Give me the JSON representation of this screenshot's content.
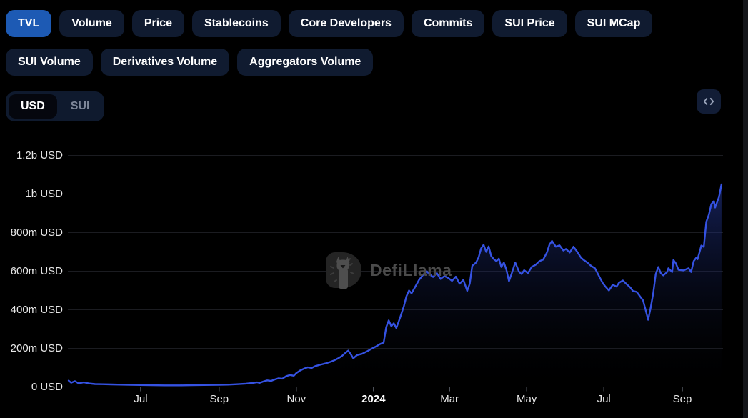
{
  "tabs": {
    "row1": [
      {
        "label": "TVL",
        "active": true
      },
      {
        "label": "Volume",
        "active": false
      },
      {
        "label": "Price",
        "active": false
      },
      {
        "label": "Stablecoins",
        "active": false
      },
      {
        "label": "Core Developers",
        "active": false
      },
      {
        "label": "Commits",
        "active": false
      },
      {
        "label": "SUI Price",
        "active": false
      },
      {
        "label": "SUI MCap",
        "active": false
      }
    ],
    "row2": [
      {
        "label": "SUI Volume",
        "active": false
      },
      {
        "label": "Derivatives Volume",
        "active": false
      },
      {
        "label": "Aggregators Volume",
        "active": false
      }
    ]
  },
  "controls": {
    "currency_toggle": {
      "options": [
        "USD",
        "SUI"
      ],
      "selected": "USD"
    },
    "embed_button": {
      "icon": "code-embed-icon"
    }
  },
  "watermark": {
    "text": "DefiLlama"
  },
  "colors": {
    "background": "#000000",
    "pill_bg": "#101b30",
    "active_pill_blue": "#1d5ab4",
    "line_blue": "#3552e2",
    "area_fill_top": "#2a41b0",
    "grid": "#1b1c21",
    "axis": "#787f8c",
    "label_text": "#e8e8e8",
    "watermark_gray": "#4b4b4b"
  },
  "chart_data": {
    "type": "area",
    "unit": "USD",
    "value_scale": "millions of USD",
    "grid": true,
    "legend": false,
    "y_axis": {
      "range_millions": [
        0,
        1200
      ],
      "ticks": [
        {
          "label": "1.2b USD",
          "value": 1200
        },
        {
          "label": "1b USD",
          "value": 1000
        },
        {
          "label": "800m USD",
          "value": 800
        },
        {
          "label": "600m USD",
          "value": 600
        },
        {
          "label": "400m USD",
          "value": 400
        },
        {
          "label": "200m USD",
          "value": 200
        },
        {
          "label": "0 USD",
          "value": 0
        }
      ]
    },
    "x_axis": {
      "range_dates": [
        "2023-05-05",
        "2024-10-02"
      ],
      "ticks": [
        {
          "label": "Jul",
          "date": "2023-07-01",
          "bold": false
        },
        {
          "label": "Sep",
          "date": "2023-09-01",
          "bold": false
        },
        {
          "label": "Nov",
          "date": "2023-11-01",
          "bold": false
        },
        {
          "label": "2024",
          "date": "2024-01-01",
          "bold": true
        },
        {
          "label": "Mar",
          "date": "2024-03-01",
          "bold": false
        },
        {
          "label": "May",
          "date": "2024-05-01",
          "bold": false
        },
        {
          "label": "Jul",
          "date": "2024-07-01",
          "bold": false
        },
        {
          "label": "Sep",
          "date": "2024-09-01",
          "bold": false
        }
      ]
    },
    "series": [
      {
        "name": "TVL",
        "points": [
          [
            "2023-05-05",
            33
          ],
          [
            "2023-05-07",
            22
          ],
          [
            "2023-05-10",
            30
          ],
          [
            "2023-05-13",
            18
          ],
          [
            "2023-05-17",
            24
          ],
          [
            "2023-05-21",
            18
          ],
          [
            "2023-05-26",
            15
          ],
          [
            "2023-06-01",
            14
          ],
          [
            "2023-06-08",
            13
          ],
          [
            "2023-06-15",
            12
          ],
          [
            "2023-06-22",
            11
          ],
          [
            "2023-07-01",
            10
          ],
          [
            "2023-07-10",
            9
          ],
          [
            "2023-07-20",
            8
          ],
          [
            "2023-08-01",
            8
          ],
          [
            "2023-08-10",
            9
          ],
          [
            "2023-08-20",
            10
          ],
          [
            "2023-09-01",
            11
          ],
          [
            "2023-09-08",
            12
          ],
          [
            "2023-09-15",
            14
          ],
          [
            "2023-09-22",
            17
          ],
          [
            "2023-09-28",
            21
          ],
          [
            "2023-10-01",
            24
          ],
          [
            "2023-10-03",
            21
          ],
          [
            "2023-10-06",
            28
          ],
          [
            "2023-10-09",
            34
          ],
          [
            "2023-10-12",
            31
          ],
          [
            "2023-10-15",
            39
          ],
          [
            "2023-10-18",
            45
          ],
          [
            "2023-10-21",
            43
          ],
          [
            "2023-10-24",
            56
          ],
          [
            "2023-10-27",
            62
          ],
          [
            "2023-10-30",
            58
          ],
          [
            "2023-11-01",
            72
          ],
          [
            "2023-11-04",
            85
          ],
          [
            "2023-11-07",
            95
          ],
          [
            "2023-11-10",
            102
          ],
          [
            "2023-11-13",
            98
          ],
          [
            "2023-11-16",
            108
          ],
          [
            "2023-11-20",
            115
          ],
          [
            "2023-11-24",
            122
          ],
          [
            "2023-11-28",
            130
          ],
          [
            "2023-12-01",
            138
          ],
          [
            "2023-12-04",
            148
          ],
          [
            "2023-12-07",
            160
          ],
          [
            "2023-12-10",
            178
          ],
          [
            "2023-12-12",
            188
          ],
          [
            "2023-12-14",
            170
          ],
          [
            "2023-12-16",
            148
          ],
          [
            "2023-12-19",
            165
          ],
          [
            "2023-12-23",
            172
          ],
          [
            "2023-12-27",
            185
          ],
          [
            "2023-12-31",
            200
          ],
          [
            "2024-01-03",
            210
          ],
          [
            "2024-01-06",
            222
          ],
          [
            "2024-01-09",
            230
          ],
          [
            "2024-01-11",
            310
          ],
          [
            "2024-01-13",
            345
          ],
          [
            "2024-01-15",
            315
          ],
          [
            "2024-01-17",
            330
          ],
          [
            "2024-01-19",
            305
          ],
          [
            "2024-01-22",
            360
          ],
          [
            "2024-01-25",
            420
          ],
          [
            "2024-01-27",
            470
          ],
          [
            "2024-01-29",
            500
          ],
          [
            "2024-01-31",
            485
          ],
          [
            "2024-02-03",
            520
          ],
          [
            "2024-02-06",
            555
          ],
          [
            "2024-02-09",
            580
          ],
          [
            "2024-02-12",
            600
          ],
          [
            "2024-02-14",
            585
          ],
          [
            "2024-02-17",
            570
          ],
          [
            "2024-02-20",
            590
          ],
          [
            "2024-02-23",
            560
          ],
          [
            "2024-02-26",
            575
          ],
          [
            "2024-02-29",
            565
          ],
          [
            "2024-03-03",
            550
          ],
          [
            "2024-03-06",
            572
          ],
          [
            "2024-03-09",
            535
          ],
          [
            "2024-03-12",
            555
          ],
          [
            "2024-03-15",
            498
          ],
          [
            "2024-03-17",
            535
          ],
          [
            "2024-03-19",
            628
          ],
          [
            "2024-03-22",
            645
          ],
          [
            "2024-03-24",
            672
          ],
          [
            "2024-03-26",
            718
          ],
          [
            "2024-03-28",
            737
          ],
          [
            "2024-03-30",
            700
          ],
          [
            "2024-04-01",
            728
          ],
          [
            "2024-04-03",
            678
          ],
          [
            "2024-04-05",
            663
          ],
          [
            "2024-04-07",
            652
          ],
          [
            "2024-04-09",
            665
          ],
          [
            "2024-04-11",
            622
          ],
          [
            "2024-04-13",
            645
          ],
          [
            "2024-04-15",
            607
          ],
          [
            "2024-04-17",
            548
          ],
          [
            "2024-04-19",
            585
          ],
          [
            "2024-04-22",
            645
          ],
          [
            "2024-04-25",
            597
          ],
          [
            "2024-04-27",
            585
          ],
          [
            "2024-04-29",
            605
          ],
          [
            "2024-05-02",
            590
          ],
          [
            "2024-05-05",
            622
          ],
          [
            "2024-05-08",
            633
          ],
          [
            "2024-05-11",
            652
          ],
          [
            "2024-05-14",
            660
          ],
          [
            "2024-05-17",
            697
          ],
          [
            "2024-05-19",
            737
          ],
          [
            "2024-05-21",
            757
          ],
          [
            "2024-05-24",
            727
          ],
          [
            "2024-05-27",
            734
          ],
          [
            "2024-05-30",
            707
          ],
          [
            "2024-06-01",
            715
          ],
          [
            "2024-06-04",
            697
          ],
          [
            "2024-06-07",
            727
          ],
          [
            "2024-06-10",
            700
          ],
          [
            "2024-06-13",
            670
          ],
          [
            "2024-06-15",
            658
          ],
          [
            "2024-06-18",
            645
          ],
          [
            "2024-06-21",
            627
          ],
          [
            "2024-06-24",
            615
          ],
          [
            "2024-06-27",
            577
          ],
          [
            "2024-06-30",
            540
          ],
          [
            "2024-07-02",
            522
          ],
          [
            "2024-07-05",
            500
          ],
          [
            "2024-07-08",
            530
          ],
          [
            "2024-07-11",
            520
          ],
          [
            "2024-07-13",
            540
          ],
          [
            "2024-07-16",
            552
          ],
          [
            "2024-07-19",
            533
          ],
          [
            "2024-07-22",
            515
          ],
          [
            "2024-07-24",
            497
          ],
          [
            "2024-07-27",
            493
          ],
          [
            "2024-08-01",
            448
          ],
          [
            "2024-08-03",
            400
          ],
          [
            "2024-08-05",
            348
          ],
          [
            "2024-08-07",
            410
          ],
          [
            "2024-08-09",
            485
          ],
          [
            "2024-08-11",
            585
          ],
          [
            "2024-08-13",
            622
          ],
          [
            "2024-08-15",
            590
          ],
          [
            "2024-08-17",
            578
          ],
          [
            "2024-08-20",
            596
          ],
          [
            "2024-08-21",
            615
          ],
          [
            "2024-08-24",
            596
          ],
          [
            "2024-08-25",
            658
          ],
          [
            "2024-08-27",
            640
          ],
          [
            "2024-08-29",
            607
          ],
          [
            "2024-09-02",
            604
          ],
          [
            "2024-09-04",
            610
          ],
          [
            "2024-09-06",
            615
          ],
          [
            "2024-09-08",
            596
          ],
          [
            "2024-09-10",
            652
          ],
          [
            "2024-09-12",
            670
          ],
          [
            "2024-09-13",
            662
          ],
          [
            "2024-09-15",
            707
          ],
          [
            "2024-09-16",
            733
          ],
          [
            "2024-09-18",
            726
          ],
          [
            "2024-09-20",
            856
          ],
          [
            "2024-09-22",
            893
          ],
          [
            "2024-09-24",
            948
          ],
          [
            "2024-09-26",
            963
          ],
          [
            "2024-09-27",
            930
          ],
          [
            "2024-09-30",
            985
          ],
          [
            "2024-10-02",
            1050
          ]
        ]
      }
    ]
  }
}
